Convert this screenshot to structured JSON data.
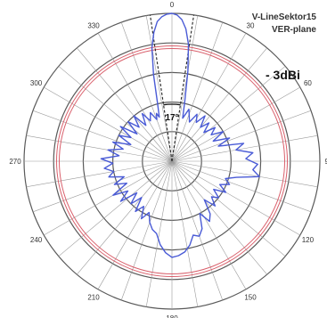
{
  "chart_data": {
    "type": "polar",
    "title": "V-LineSektor15",
    "subtitle": "VER-plane",
    "gain_label": "- 3dBi",
    "beamwidth_label": "17°",
    "angle_ticks": [
      "0",
      "30",
      "60",
      "90",
      "120",
      "150",
      "180",
      "210",
      "240",
      "270",
      "300",
      "330"
    ],
    "ring_count": 5,
    "reference_ring_fraction": 0.78,
    "colors": {
      "pattern": "#4a5bd6",
      "reference": "#d9606c",
      "grid": "#5a5a5a",
      "beam_lines": "#222222"
    },
    "series": [
      {
        "angle_deg": [
          0,
          2,
          4,
          6,
          8,
          10,
          12,
          14,
          16,
          18,
          20,
          24,
          28,
          32,
          36,
          40,
          44,
          48,
          52,
          56,
          60,
          64,
          68,
          72,
          76,
          80,
          84,
          88,
          92,
          96,
          100,
          104,
          108,
          112,
          116,
          120,
          124,
          128,
          132,
          136,
          140,
          144,
          148,
          152,
          156,
          160,
          164,
          168,
          172,
          176,
          180,
          184,
          188,
          192,
          196,
          200,
          204,
          208,
          212,
          216,
          220,
          224,
          228,
          232,
          236,
          240,
          244,
          248,
          252,
          256,
          260,
          264,
          268,
          272,
          276,
          280,
          284,
          288,
          292,
          296,
          300,
          304,
          308,
          312,
          316,
          320,
          324,
          328,
          332,
          336,
          340,
          342,
          344,
          346,
          348,
          350,
          352,
          354,
          356,
          358
        ],
        "r": [
          1.0,
          0.99,
          0.96,
          0.9,
          0.8,
          0.62,
          0.42,
          0.3,
          0.33,
          0.37,
          0.34,
          0.29,
          0.36,
          0.31,
          0.38,
          0.3,
          0.36,
          0.29,
          0.37,
          0.32,
          0.4,
          0.31,
          0.42,
          0.33,
          0.5,
          0.44,
          0.55,
          0.5,
          0.58,
          0.55,
          0.6,
          0.45,
          0.38,
          0.42,
          0.36,
          0.42,
          0.34,
          0.4,
          0.36,
          0.42,
          0.34,
          0.44,
          0.48,
          0.4,
          0.5,
          0.54,
          0.52,
          0.58,
          0.62,
          0.64,
          0.65,
          0.62,
          0.57,
          0.5,
          0.48,
          0.44,
          0.38,
          0.44,
          0.36,
          0.42,
          0.32,
          0.4,
          0.32,
          0.44,
          0.36,
          0.46,
          0.34,
          0.42,
          0.34,
          0.44,
          0.4,
          0.46,
          0.4,
          0.48,
          0.36,
          0.44,
          0.34,
          0.42,
          0.3,
          0.4,
          0.32,
          0.42,
          0.3,
          0.4,
          0.32,
          0.4,
          0.3,
          0.38,
          0.31,
          0.36,
          0.3,
          0.34,
          0.31,
          0.4,
          0.6,
          0.78,
          0.88,
          0.95,
          0.98,
          0.995
        ]
      }
    ]
  }
}
